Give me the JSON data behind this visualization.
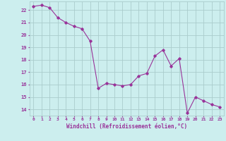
{
  "x": [
    0,
    1,
    2,
    3,
    4,
    5,
    6,
    7,
    8,
    9,
    10,
    11,
    12,
    13,
    14,
    15,
    16,
    17,
    18,
    19,
    20,
    21,
    22,
    23
  ],
  "y": [
    22.3,
    22.4,
    22.2,
    21.4,
    21.0,
    20.7,
    20.5,
    19.5,
    15.7,
    16.1,
    16.0,
    15.9,
    16.0,
    16.7,
    16.9,
    18.3,
    18.8,
    17.5,
    18.1,
    13.7,
    15.0,
    14.7,
    14.4,
    14.2
  ],
  "line_color": "#993399",
  "marker": "D",
  "markersize": 1.8,
  "linewidth": 0.8,
  "bg_color": "#cceeee",
  "grid_color": "#aacccc",
  "xlabel": "Windchill (Refroidissement éolien,°C)",
  "xlabel_color": "#993399",
  "tick_color": "#993399",
  "ylim": [
    13.5,
    22.7
  ],
  "xlim": [
    -0.5,
    23.5
  ],
  "yticks": [
    14,
    15,
    16,
    17,
    18,
    19,
    20,
    21,
    22
  ],
  "xticks": [
    0,
    1,
    2,
    3,
    4,
    5,
    6,
    7,
    8,
    9,
    10,
    11,
    12,
    13,
    14,
    15,
    16,
    17,
    18,
    19,
    20,
    21,
    22,
    23
  ]
}
